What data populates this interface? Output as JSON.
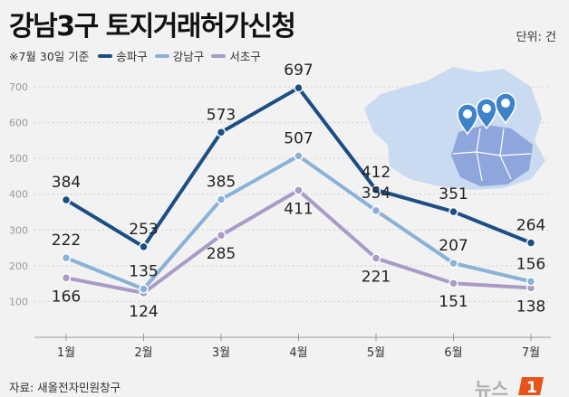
{
  "header": {
    "title": "강남3구 토지거래허가신청",
    "note": "※7월 30일 기준",
    "unit": "단위: 건"
  },
  "footer": {
    "source": "자료: 새올전자민원창구"
  },
  "colors": {
    "songpa": "#1c4e84",
    "gangnam": "#8ab1d6",
    "seocho": "#a99bc6",
    "grid": "#d0d0d0",
    "map_fill": "#c9daf1",
    "map_highlight": "#8fa6dc",
    "pin": "#3e82c9",
    "logo": "#e8531c"
  },
  "chart_data": {
    "type": "line",
    "categories": [
      "1월",
      "2월",
      "3월",
      "4월",
      "5월",
      "6월",
      "7월"
    ],
    "series": [
      {
        "name": "송파구",
        "values": [
          384,
          253,
          573,
          697,
          412,
          351,
          264
        ]
      },
      {
        "name": "강남구",
        "values": [
          222,
          135,
          385,
          507,
          354,
          207,
          156
        ]
      },
      {
        "name": "서초구",
        "values": [
          166,
          124,
          285,
          411,
          221,
          151,
          138
        ]
      }
    ],
    "yticks": [
      "100",
      "200",
      "300",
      "400",
      "500",
      "600",
      "700"
    ],
    "ylim": [
      0,
      700
    ],
    "grid": true
  }
}
